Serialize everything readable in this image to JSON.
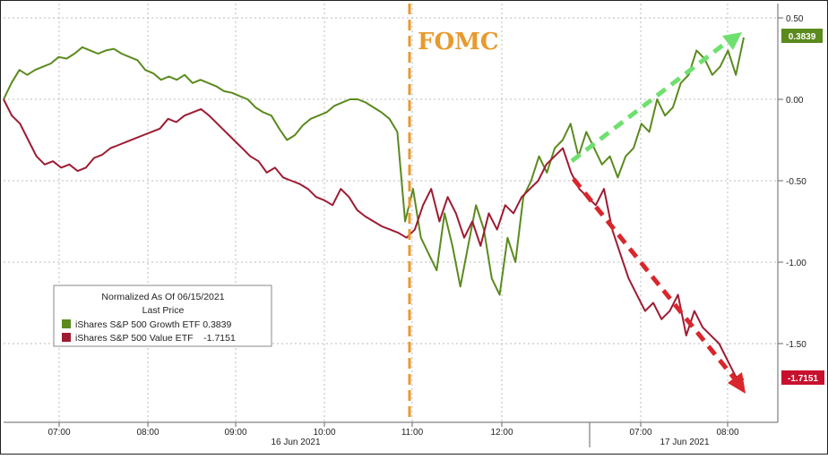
{
  "chart_data": {
    "type": "line",
    "annotation": "FOMC",
    "legend": {
      "title_line1": "Normalized As Of 06/15/2021",
      "title_line2": "Last Price",
      "entries": [
        {
          "label": "iShares S&P 500 Growth ETF 0.3839",
          "color": "#5b8a1e"
        },
        {
          "label": "iShares S&P 500 Value ETF    -1.7151",
          "color": "#9e1b32"
        }
      ],
      "placement": "bottom-left"
    },
    "ylim": [
      -2.0,
      0.55
    ],
    "y_ticks": [
      {
        "value": 0.5,
        "label": "0.50"
      },
      {
        "value": 0.0,
        "label": "0.00"
      },
      {
        "value": -0.5,
        "label": "-0.50"
      },
      {
        "value": -1.0,
        "label": "-1.00"
      },
      {
        "value": -1.5,
        "label": "-1.50"
      }
    ],
    "x_ticks": [
      "07:00",
      "08:00",
      "09:00",
      "10:00",
      "11:00",
      "12:00",
      "07:00",
      "08:00"
    ],
    "date_labels": [
      "16 Jun 2021",
      "17 Jun 2021"
    ],
    "grid": true,
    "last_values": {
      "growth": "0.3839",
      "value": "-1.7151"
    },
    "series": [
      {
        "name": "iShares S&P 500 Growth ETF",
        "color": "#5b8a1e",
        "values": [
          0.0,
          0.1,
          0.18,
          0.15,
          0.18,
          0.2,
          0.22,
          0.26,
          0.25,
          0.28,
          0.32,
          0.3,
          0.28,
          0.3,
          0.31,
          0.28,
          0.26,
          0.24,
          0.18,
          0.16,
          0.12,
          0.14,
          0.12,
          0.15,
          0.1,
          0.12,
          0.1,
          0.08,
          0.05,
          0.04,
          0.02,
          0.0,
          -0.05,
          -0.08,
          -0.1,
          -0.18,
          -0.25,
          -0.22,
          -0.16,
          -0.12,
          -0.1,
          -0.08,
          -0.04,
          -0.02,
          0.0,
          0.0,
          -0.02,
          -0.05,
          -0.08,
          -0.12,
          -0.2,
          -0.75,
          -0.55,
          -0.85,
          -0.95,
          -1.05,
          -0.7,
          -0.9,
          -1.15,
          -0.9,
          -0.65,
          -0.8,
          -1.1,
          -1.2,
          -0.85,
          -1.0,
          -0.6,
          -0.5,
          -0.35,
          -0.45,
          -0.3,
          -0.25,
          -0.15,
          -0.35,
          -0.2,
          -0.3,
          -0.4,
          -0.35,
          -0.48,
          -0.35,
          -0.3,
          -0.15,
          -0.2,
          0.0,
          -0.1,
          -0.05,
          0.1,
          0.15,
          0.3,
          0.25,
          0.15,
          0.2,
          0.3,
          0.15,
          0.38
        ]
      },
      {
        "name": "iShares S&P 500 Value ETF",
        "color": "#9e1b32",
        "values": [
          0.0,
          -0.1,
          -0.15,
          -0.25,
          -0.35,
          -0.4,
          -0.38,
          -0.42,
          -0.4,
          -0.44,
          -0.42,
          -0.36,
          -0.34,
          -0.3,
          -0.28,
          -0.26,
          -0.24,
          -0.22,
          -0.2,
          -0.18,
          -0.12,
          -0.14,
          -0.1,
          -0.08,
          -0.06,
          -0.1,
          -0.15,
          -0.2,
          -0.25,
          -0.3,
          -0.35,
          -0.38,
          -0.45,
          -0.42,
          -0.48,
          -0.5,
          -0.52,
          -0.55,
          -0.6,
          -0.62,
          -0.65,
          -0.55,
          -0.6,
          -0.68,
          -0.72,
          -0.75,
          -0.78,
          -0.8,
          -0.82,
          -0.85,
          -0.8,
          -0.65,
          -0.55,
          -0.75,
          -0.6,
          -0.7,
          -0.85,
          -0.75,
          -0.9,
          -0.7,
          -0.8,
          -0.65,
          -0.7,
          -0.6,
          -0.55,
          -0.5,
          -0.4,
          -0.35,
          -0.3,
          -0.45,
          -0.55,
          -0.6,
          -0.65,
          -0.55,
          -0.8,
          -0.95,
          -1.1,
          -1.2,
          -1.3,
          -1.25,
          -1.35,
          -1.3,
          -1.2,
          -1.45,
          -1.3,
          -1.4,
          -1.45,
          -1.5,
          -1.6,
          -1.7,
          -1.72
        ]
      }
    ]
  }
}
